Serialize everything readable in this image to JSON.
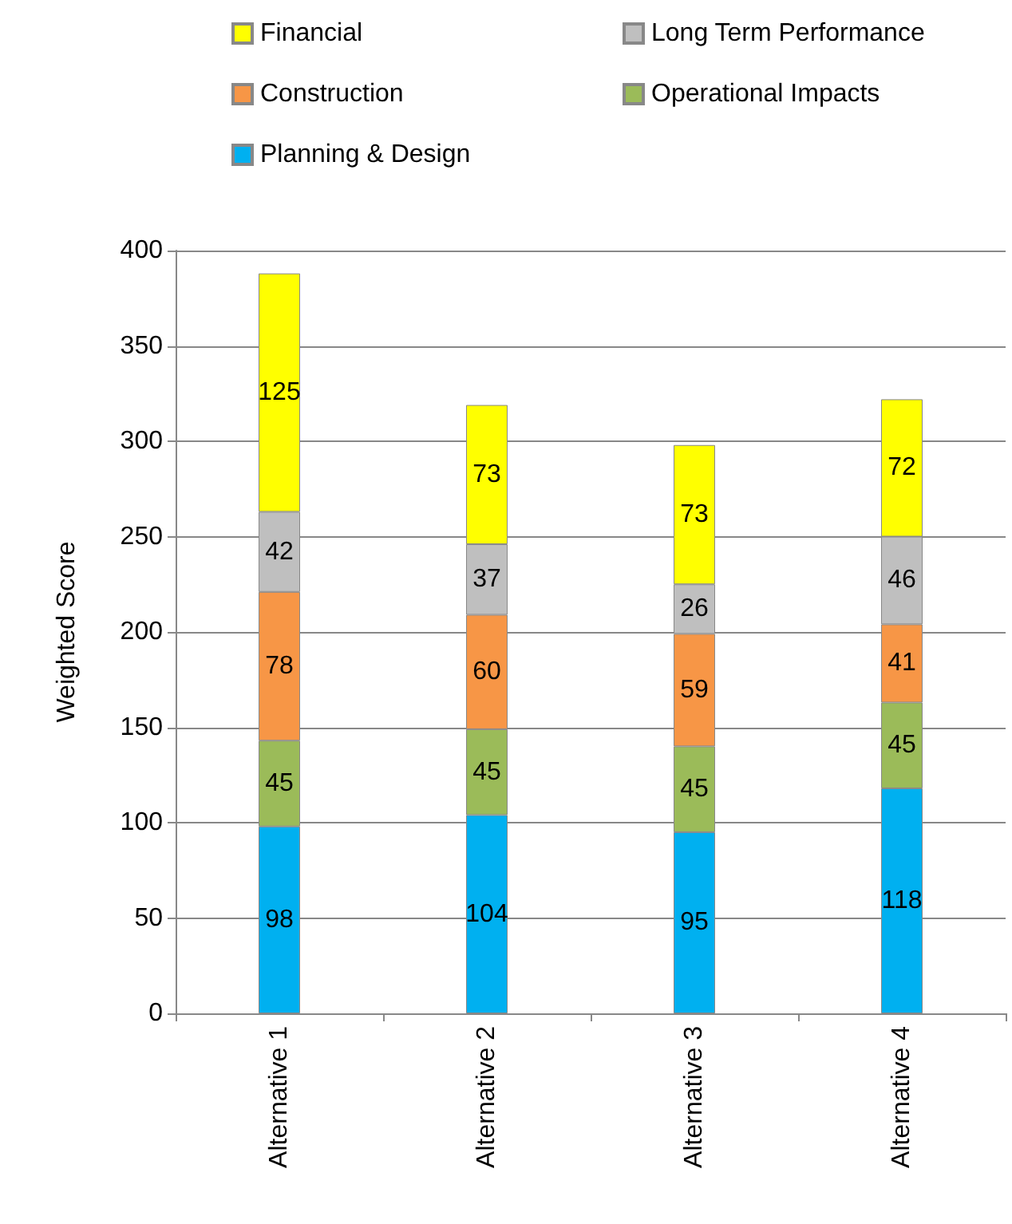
{
  "chart_data": {
    "type": "bar",
    "ylabel": "Weighted Score",
    "categories": [
      "Alternative 1",
      "Alternative 2",
      "Alternative 3",
      "Alternative 4"
    ],
    "stacked": true,
    "data_labels": true,
    "grid": "y",
    "legend": "top",
    "ylim": [
      0,
      400
    ],
    "yticks": [
      0,
      50,
      100,
      150,
      200,
      250,
      300,
      350,
      400
    ],
    "series": [
      {
        "name": "Planning & Design",
        "color": "#00b0f0",
        "values": [
          98,
          104,
          95,
          118
        ]
      },
      {
        "name": "Operational Impacts",
        "color": "#9bbb59",
        "values": [
          45,
          45,
          45,
          45
        ]
      },
      {
        "name": "Construction",
        "color": "#f79646",
        "values": [
          78,
          60,
          59,
          41
        ]
      },
      {
        "name": "Long Term Performance",
        "color": "#bfbfbf",
        "values": [
          42,
          37,
          26,
          46
        ]
      },
      {
        "name": "Financial",
        "color": "#ffff00",
        "values": [
          125,
          73,
          73,
          72
        ]
      }
    ]
  }
}
